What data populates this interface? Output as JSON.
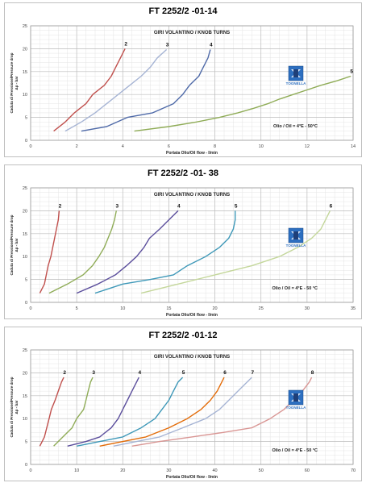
{
  "chart_data": [
    {
      "type": "line",
      "title": "FT 2252/2 -01-14",
      "subtitle": "GIRI VOLANTINO / KNOB TURNS",
      "ylabel": "Caduta di Pressione/Pressure drop\nΔp - bar",
      "xlabel": "Portata Olio/Oil flow - l/min",
      "xlim": [
        0,
        14
      ],
      "ylim": [
        0,
        25
      ],
      "xticks": [
        0,
        2,
        4,
        6,
        8,
        10,
        12,
        14
      ],
      "yticks": [
        0,
        5,
        10,
        15,
        20,
        25
      ],
      "grid": true,
      "annotation": "Olio / Oil = 4°E - 50°C",
      "logo_text": "TOGNELLA",
      "series": [
        {
          "name": "2",
          "color": "#c0504d",
          "points": [
            [
              1.0,
              2
            ],
            [
              1.5,
              4
            ],
            [
              1.9,
              6
            ],
            [
              2.4,
              8
            ],
            [
              2.7,
              10
            ],
            [
              3.2,
              12
            ],
            [
              3.5,
              14
            ],
            [
              3.7,
              16
            ],
            [
              3.9,
              18
            ],
            [
              4.1,
              20
            ]
          ]
        },
        {
          "name": "3",
          "color": "#a6b4d4",
          "points": [
            [
              1.5,
              2
            ],
            [
              2.2,
              4
            ],
            [
              2.8,
              6
            ],
            [
              3.3,
              8
            ],
            [
              3.8,
              10
            ],
            [
              4.3,
              12
            ],
            [
              4.8,
              14
            ],
            [
              5.2,
              16
            ],
            [
              5.5,
              18
            ],
            [
              5.9,
              19.8
            ]
          ]
        },
        {
          "name": "4",
          "color": "#4f6aa8",
          "points": [
            [
              2.2,
              2
            ],
            [
              3.3,
              3
            ],
            [
              4.2,
              5
            ],
            [
              5.3,
              6
            ],
            [
              6.2,
              8
            ],
            [
              6.6,
              10
            ],
            [
              6.9,
              12
            ],
            [
              7.3,
              14
            ],
            [
              7.5,
              16
            ],
            [
              7.7,
              18
            ],
            [
              7.8,
              19.8
            ]
          ]
        },
        {
          "name": "5",
          "color": "#8fac57",
          "points": [
            [
              4.5,
              2
            ],
            [
              6.0,
              3
            ],
            [
              7.2,
              4
            ],
            [
              8.2,
              5
            ],
            [
              9.0,
              6
            ],
            [
              9.7,
              7
            ],
            [
              10.3,
              8
            ],
            [
              10.8,
              9
            ],
            [
              11.4,
              10
            ],
            [
              12.0,
              11
            ],
            [
              12.6,
              12
            ],
            [
              13.3,
              13
            ],
            [
              13.9,
              14
            ]
          ]
        }
      ]
    },
    {
      "type": "line",
      "title": "FT 2252/2 -01- 38",
      "subtitle": "GIRI VOLANTINO / KNOB TURNS",
      "ylabel": "Caduta di Pressione/Pressure drop\nΔp - bar",
      "xlabel": "Portata Olio/Oil flow - l/min",
      "xlim": [
        0,
        35
      ],
      "ylim": [
        0,
        25
      ],
      "xticks": [
        0,
        5,
        10,
        15,
        20,
        25,
        30,
        35
      ],
      "yticks": [
        0,
        5,
        10,
        15,
        20,
        25
      ],
      "grid": true,
      "annotation": "Olio / Oil = 4°E - 50 °C",
      "logo_text": "TOGNELLA",
      "series": [
        {
          "name": "2",
          "color": "#c0504d",
          "points": [
            [
              1.0,
              2
            ],
            [
              1.5,
              4
            ],
            [
              1.9,
              8
            ],
            [
              2.2,
              10
            ],
            [
              2.4,
              12
            ],
            [
              2.6,
              14
            ],
            [
              2.8,
              16
            ],
            [
              3.0,
              18
            ],
            [
              3.1,
              20
            ]
          ]
        },
        {
          "name": "3",
          "color": "#8fac57",
          "points": [
            [
              2.0,
              2
            ],
            [
              4.0,
              4
            ],
            [
              5.7,
              6
            ],
            [
              6.7,
              8
            ],
            [
              7.4,
              10
            ],
            [
              8.0,
              12
            ],
            [
              8.4,
              14
            ],
            [
              8.8,
              16
            ],
            [
              9.1,
              18
            ],
            [
              9.3,
              20
            ]
          ]
        },
        {
          "name": "4",
          "color": "#5b4e9c",
          "points": [
            [
              5.0,
              2
            ],
            [
              7.3,
              4
            ],
            [
              9.2,
              6
            ],
            [
              10.4,
              8
            ],
            [
              11.5,
              10
            ],
            [
              12.3,
              12
            ],
            [
              12.9,
              14
            ],
            [
              14.0,
              16
            ],
            [
              15.0,
              18
            ],
            [
              16.0,
              20
            ]
          ]
        },
        {
          "name": "5",
          "color": "#3e98b8",
          "points": [
            [
              7.0,
              2
            ],
            [
              10.0,
              4
            ],
            [
              13.0,
              5
            ],
            [
              15.5,
              6
            ],
            [
              17.0,
              8
            ],
            [
              19.0,
              10
            ],
            [
              20.5,
              12
            ],
            [
              21.5,
              14
            ],
            [
              22.0,
              16
            ],
            [
              22.2,
              18
            ],
            [
              22.2,
              20
            ]
          ]
        },
        {
          "name": "6",
          "color": "#c4d79b",
          "points": [
            [
              12.0,
              2
            ],
            [
              16.0,
              4
            ],
            [
              20.0,
              6
            ],
            [
              24.0,
              8
            ],
            [
              27.0,
              10
            ],
            [
              29.0,
              12
            ],
            [
              30.5,
              14
            ],
            [
              31.5,
              16
            ],
            [
              32.0,
              18
            ],
            [
              32.5,
              20
            ]
          ]
        }
      ]
    },
    {
      "type": "line",
      "title": "FT 2252/2 -01-12",
      "subtitle": "GIRI VOLANTINO / KNOB TURNS",
      "ylabel": "Caduta di Pressione/Pressure drop\nΔp - bar",
      "xlabel": "Portata Olio/Oil flow - l/min",
      "xlim": [
        0,
        70
      ],
      "ylim": [
        0,
        25
      ],
      "xticks": [
        0,
        10,
        20,
        30,
        40,
        50,
        60,
        70
      ],
      "yticks": [
        0,
        5,
        10,
        15,
        20,
        25
      ],
      "grid": true,
      "annotation": "Olio / Oil = 4°E - 50 °C",
      "logo_text": "TOGNELLA",
      "series": [
        {
          "name": "2",
          "color": "#c0504d",
          "points": [
            [
              2.0,
              4
            ],
            [
              3.0,
              6
            ],
            [
              3.5,
              8
            ],
            [
              4.0,
              10
            ],
            [
              4.5,
              12
            ],
            [
              5.3,
              14
            ],
            [
              6.0,
              16
            ],
            [
              6.7,
              18
            ],
            [
              7.2,
              19
            ]
          ]
        },
        {
          "name": "3",
          "color": "#8fac57",
          "points": [
            [
              5.0,
              4
            ],
            [
              7.0,
              6
            ],
            [
              9.0,
              8
            ],
            [
              10.0,
              10
            ],
            [
              11.5,
              12
            ],
            [
              12.0,
              14
            ],
            [
              12.5,
              16
            ],
            [
              13.0,
              18
            ],
            [
              13.5,
              19
            ]
          ]
        },
        {
          "name": "4",
          "color": "#5b4e9c",
          "points": [
            [
              8.0,
              4
            ],
            [
              12.0,
              5
            ],
            [
              15.0,
              6
            ],
            [
              17.5,
              8
            ],
            [
              19.0,
              10
            ],
            [
              20.0,
              12
            ],
            [
              21.0,
              14
            ],
            [
              22.0,
              16
            ],
            [
              23.0,
              18
            ],
            [
              23.5,
              19
            ]
          ]
        },
        {
          "name": "5",
          "color": "#3e98b8",
          "points": [
            [
              10.0,
              4
            ],
            [
              15.0,
              5
            ],
            [
              20.0,
              6
            ],
            [
              24.0,
              8
            ],
            [
              27.0,
              10
            ],
            [
              28.5,
              12
            ],
            [
              30.0,
              14
            ],
            [
              31.0,
              16
            ],
            [
              32.0,
              18
            ],
            [
              33.0,
              19
            ]
          ]
        },
        {
          "name": "6",
          "color": "#e36c09",
          "points": [
            [
              15.0,
              4
            ],
            [
              20.0,
              5
            ],
            [
              25.0,
              6
            ],
            [
              30.0,
              8
            ],
            [
              34.0,
              10
            ],
            [
              37.0,
              12
            ],
            [
              39.0,
              14
            ],
            [
              40.5,
              16
            ],
            [
              41.5,
              18
            ],
            [
              42.0,
              19
            ]
          ]
        },
        {
          "name": "7",
          "color": "#a6b4d4",
          "points": [
            [
              18.0,
              4
            ],
            [
              23.0,
              5
            ],
            [
              28.0,
              6
            ],
            [
              33.0,
              8
            ],
            [
              38.0,
              10
            ],
            [
              41.0,
              12
            ],
            [
              43.0,
              14
            ],
            [
              45.0,
              16
            ],
            [
              47.0,
              18
            ],
            [
              48.0,
              19
            ]
          ]
        },
        {
          "name": "8",
          "color": "#d99694",
          "points": [
            [
              22.0,
              4
            ],
            [
              28.0,
              5
            ],
            [
              35.0,
              6
            ],
            [
              42.0,
              7
            ],
            [
              48.0,
              8
            ],
            [
              52.0,
              10
            ],
            [
              55.0,
              12
            ],
            [
              57.0,
              14
            ],
            [
              59.0,
              16
            ],
            [
              60.5,
              18
            ],
            [
              61.0,
              19
            ]
          ]
        }
      ]
    }
  ]
}
